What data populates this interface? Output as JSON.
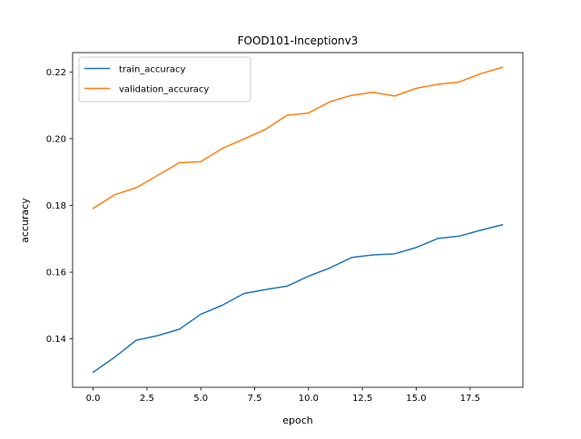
{
  "chart_data": {
    "type": "line",
    "title": "FOOD101-Inceptionv3",
    "xlabel": "epoch",
    "ylabel": "accuracy",
    "xlim": [
      -0.95,
      19.95
    ],
    "ylim": [
      0.1255,
      0.2258
    ],
    "x": [
      0,
      1,
      2,
      3,
      4,
      5,
      6,
      7,
      8,
      9,
      10,
      11,
      12,
      13,
      14,
      15,
      16,
      17,
      18,
      19
    ],
    "xticks": [
      0.0,
      2.5,
      5.0,
      7.5,
      10.0,
      12.5,
      15.0,
      17.5
    ],
    "xtick_labels": [
      "0.0",
      "2.5",
      "5.0",
      "7.5",
      "10.0",
      "12.5",
      "15.0",
      "17.5"
    ],
    "yticks": [
      0.14,
      0.16,
      0.18,
      0.2,
      0.22
    ],
    "ytick_labels": [
      "0.14",
      "0.16",
      "0.18",
      "0.20",
      "0.22"
    ],
    "grid": false,
    "legend_position": "upper-left",
    "series": [
      {
        "name": "train_accuracy",
        "color": "#1f77b4",
        "values": [
          0.13,
          0.1345,
          0.1396,
          0.141,
          0.1429,
          0.1474,
          0.1501,
          0.1536,
          0.1548,
          0.1558,
          0.1588,
          0.1613,
          0.1644,
          0.1652,
          0.1655,
          0.1674,
          0.1701,
          0.1708,
          0.1726,
          0.1742
        ]
      },
      {
        "name": "validation_accuracy",
        "color": "#ff7f0e",
        "values": [
          0.1791,
          0.1832,
          0.1853,
          0.189,
          0.1928,
          0.1931,
          0.1971,
          0.1999,
          0.2028,
          0.207,
          0.2077,
          0.2111,
          0.213,
          0.2139,
          0.2128,
          0.2151,
          0.2163,
          0.217,
          0.2195,
          0.2214
        ]
      }
    ]
  }
}
